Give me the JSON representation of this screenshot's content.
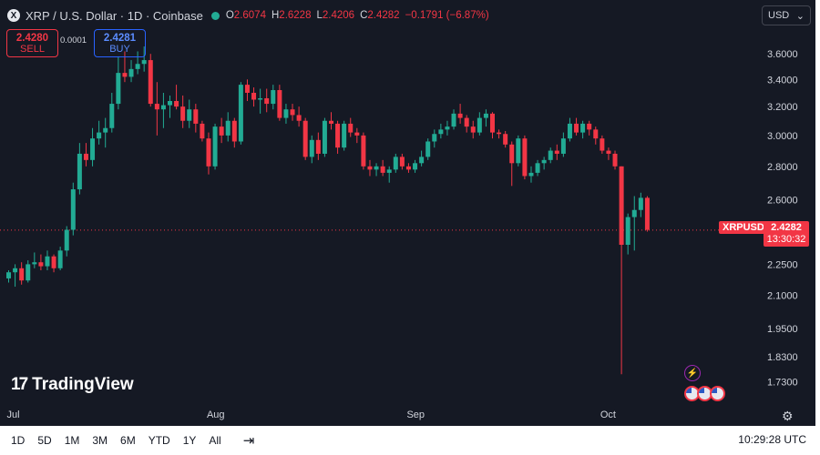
{
  "header": {
    "symbol_icon": "X",
    "title": "XRP / U.S. Dollar · 1D · Coinbase",
    "status_color": "#22ab94",
    "ohlc": [
      {
        "key": "O",
        "value": "2.6074"
      },
      {
        "key": "H",
        "value": "2.6228"
      },
      {
        "key": "L",
        "value": "2.4206"
      },
      {
        "key": "C",
        "value": "2.4282"
      }
    ],
    "change": "−0.1791 (−6.87%)"
  },
  "trade": {
    "sell_price": "2.4280",
    "sell_label": "SELL",
    "spread": "0.0001",
    "buy_price": "2.4281",
    "buy_label": "BUY"
  },
  "currency_select": {
    "value": "USD",
    "icon": "chevron-down-icon"
  },
  "price_tag": {
    "symbol": "XRPUSD",
    "price": "2.4282",
    "countdown": "13:30:32",
    "color": "#f23645"
  },
  "logo": {
    "mark": "17",
    "text": "TradingView"
  },
  "toolbar": {
    "timeframes": [
      "1D",
      "5D",
      "1M",
      "3M",
      "6M",
      "YTD",
      "1Y",
      "All"
    ],
    "calendar_icon": "calendar-icon",
    "time": "10:29:28 UTC"
  },
  "chart_data": {
    "type": "candlestick",
    "title": "XRP / U.S. Dollar · 1D · Coinbase",
    "y_ticks": [
      3.6,
      3.4,
      3.2,
      3.0,
      2.8,
      2.6,
      2.25,
      2.1,
      1.95,
      1.83,
      1.73
    ],
    "y_tick_labels": [
      "3.6000",
      "3.4000",
      "3.2000",
      "3.0000",
      "2.8000",
      "2.6000",
      "2.2500",
      "2.1000",
      "1.9500",
      "1.8300",
      "1.7300"
    ],
    "y_scale": "log",
    "ylim": [
      1.66,
      3.82
    ],
    "x_ticks": [
      {
        "label": "Jul",
        "index": 0
      },
      {
        "label": "Aug",
        "index": 31
      },
      {
        "label": "Sep",
        "index": 62
      },
      {
        "label": "Oct",
        "index": 92
      }
    ],
    "last_price": 2.4282,
    "colors": {
      "up": "#22ab94",
      "down": "#f23645"
    },
    "candles": [
      [
        2.18,
        2.22,
        2.16,
        2.21
      ],
      [
        2.21,
        2.25,
        2.14,
        2.23
      ],
      [
        2.23,
        2.26,
        2.15,
        2.17
      ],
      [
        2.17,
        2.27,
        2.16,
        2.25
      ],
      [
        2.25,
        2.31,
        2.23,
        2.26
      ],
      [
        2.26,
        2.3,
        2.22,
        2.24
      ],
      [
        2.24,
        2.32,
        2.22,
        2.29
      ],
      [
        2.29,
        2.3,
        2.21,
        2.23
      ],
      [
        2.23,
        2.34,
        2.22,
        2.32
      ],
      [
        2.32,
        2.45,
        2.29,
        2.43
      ],
      [
        2.43,
        2.7,
        2.4,
        2.66
      ],
      [
        2.66,
        2.95,
        2.63,
        2.88
      ],
      [
        2.88,
        2.95,
        2.8,
        2.84
      ],
      [
        2.84,
        3.05,
        2.8,
        2.98
      ],
      [
        2.98,
        3.1,
        2.94,
        3.02
      ],
      [
        3.02,
        3.12,
        2.92,
        3.05
      ],
      [
        3.05,
        3.3,
        3.02,
        3.22
      ],
      [
        3.22,
        3.58,
        3.18,
        3.45
      ],
      [
        3.45,
        3.62,
        3.38,
        3.42
      ],
      [
        3.42,
        3.55,
        3.38,
        3.48
      ],
      [
        3.48,
        3.62,
        3.44,
        3.52
      ],
      [
        3.52,
        3.66,
        3.46,
        3.55
      ],
      [
        3.55,
        3.6,
        3.2,
        3.22
      ],
      [
        3.22,
        3.38,
        3.0,
        3.18
      ],
      [
        3.18,
        3.3,
        3.05,
        3.21
      ],
      [
        3.21,
        3.28,
        3.12,
        3.24
      ],
      [
        3.24,
        3.36,
        3.18,
        3.2
      ],
      [
        3.2,
        3.28,
        3.05,
        3.1
      ],
      [
        3.1,
        3.25,
        3.05,
        3.18
      ],
      [
        3.18,
        3.22,
        3.02,
        3.08
      ],
      [
        3.08,
        3.1,
        2.96,
        2.98
      ],
      [
        2.98,
        3.02,
        2.75,
        2.8
      ],
      [
        2.8,
        3.08,
        2.78,
        3.06
      ],
      [
        3.06,
        3.12,
        2.95,
        3.0
      ],
      [
        3.0,
        3.16,
        2.96,
        3.1
      ],
      [
        3.1,
        3.12,
        2.92,
        2.96
      ],
      [
        2.96,
        3.38,
        2.94,
        3.36
      ],
      [
        3.36,
        3.4,
        3.24,
        3.3
      ],
      [
        3.3,
        3.34,
        3.2,
        3.25
      ],
      [
        3.25,
        3.33,
        3.15,
        3.26
      ],
      [
        3.26,
        3.33,
        3.16,
        3.22
      ],
      [
        3.22,
        3.36,
        3.18,
        3.32
      ],
      [
        3.32,
        3.36,
        3.1,
        3.12
      ],
      [
        3.12,
        3.22,
        3.08,
        3.18
      ],
      [
        3.18,
        3.22,
        3.1,
        3.14
      ],
      [
        3.14,
        3.2,
        3.06,
        3.1
      ],
      [
        3.1,
        3.12,
        2.84,
        2.86
      ],
      [
        2.86,
        3.0,
        2.82,
        2.97
      ],
      [
        2.97,
        3.02,
        2.84,
        2.88
      ],
      [
        2.88,
        3.12,
        2.86,
        3.1
      ],
      [
        3.1,
        3.16,
        3.04,
        3.08
      ],
      [
        3.08,
        3.1,
        2.88,
        2.92
      ],
      [
        2.92,
        3.1,
        2.9,
        3.08
      ],
      [
        3.08,
        3.12,
        2.99,
        3.02
      ],
      [
        3.02,
        3.05,
        2.95,
        3.0
      ],
      [
        3.0,
        3.02,
        2.78,
        2.8
      ],
      [
        2.8,
        2.84,
        2.74,
        2.78
      ],
      [
        2.78,
        2.82,
        2.74,
        2.8
      ],
      [
        2.8,
        2.84,
        2.74,
        2.76
      ],
      [
        2.76,
        2.8,
        2.7,
        2.78
      ],
      [
        2.78,
        2.88,
        2.76,
        2.86
      ],
      [
        2.86,
        2.88,
        2.78,
        2.8
      ],
      [
        2.8,
        2.82,
        2.76,
        2.78
      ],
      [
        2.78,
        2.84,
        2.76,
        2.82
      ],
      [
        2.82,
        2.9,
        2.8,
        2.86
      ],
      [
        2.86,
        2.98,
        2.84,
        2.96
      ],
      [
        2.96,
        3.04,
        2.92,
        3.01
      ],
      [
        3.01,
        3.08,
        2.98,
        3.04
      ],
      [
        3.04,
        3.1,
        3.0,
        3.06
      ],
      [
        3.06,
        3.18,
        3.04,
        3.15
      ],
      [
        3.15,
        3.22,
        3.08,
        3.12
      ],
      [
        3.12,
        3.14,
        3.02,
        3.06
      ],
      [
        3.06,
        3.1,
        2.98,
        3.02
      ],
      [
        3.02,
        3.16,
        3.0,
        3.12
      ],
      [
        3.12,
        3.18,
        3.06,
        3.15
      ],
      [
        3.15,
        3.16,
        2.98,
        3.02
      ],
      [
        3.02,
        3.04,
        2.98,
        3.01
      ],
      [
        3.01,
        3.03,
        2.92,
        2.94
      ],
      [
        2.94,
        2.96,
        2.68,
        2.82
      ],
      [
        2.82,
        3.0,
        2.8,
        2.98
      ],
      [
        2.98,
        3.0,
        2.72,
        2.74
      ],
      [
        2.74,
        2.8,
        2.7,
        2.76
      ],
      [
        2.76,
        2.84,
        2.74,
        2.82
      ],
      [
        2.82,
        2.86,
        2.78,
        2.84
      ],
      [
        2.84,
        2.92,
        2.82,
        2.9
      ],
      [
        2.9,
        2.94,
        2.84,
        2.88
      ],
      [
        2.88,
        3.02,
        2.86,
        2.98
      ],
      [
        2.98,
        3.12,
        2.96,
        3.08
      ],
      [
        3.08,
        3.12,
        3.0,
        3.02
      ],
      [
        3.02,
        3.1,
        2.98,
        3.08
      ],
      [
        3.08,
        3.1,
        3.0,
        3.04
      ],
      [
        3.04,
        3.06,
        2.94,
        2.98
      ],
      [
        2.98,
        3.0,
        2.88,
        2.9
      ],
      [
        2.9,
        2.92,
        2.84,
        2.88
      ],
      [
        2.88,
        2.9,
        2.78,
        2.8
      ],
      [
        2.8,
        2.8,
        1.76,
        2.35
      ],
      [
        2.35,
        2.52,
        2.3,
        2.5
      ],
      [
        2.5,
        2.62,
        2.32,
        2.54
      ],
      [
        2.54,
        2.64,
        2.5,
        2.61
      ],
      [
        2.61,
        2.62,
        2.42,
        2.43
      ]
    ]
  }
}
